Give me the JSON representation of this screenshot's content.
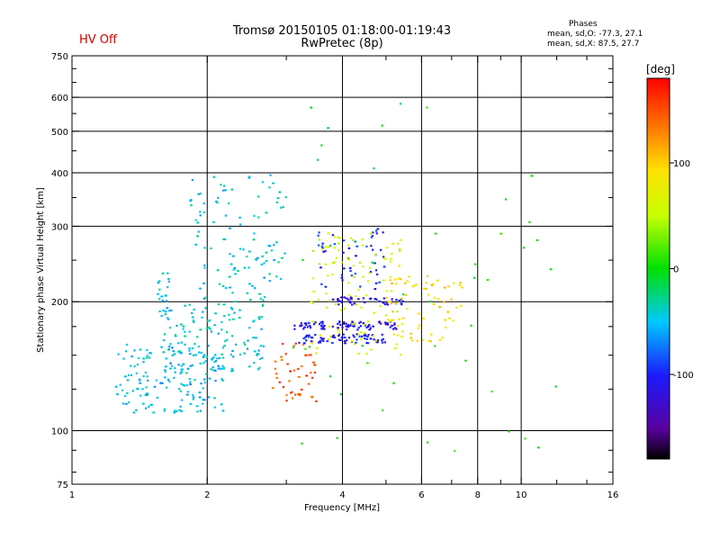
{
  "header": {
    "title_line1": "Tromsø 20150105 01:18:00-01:19:43",
    "title_line2": "RwPretec (8p)",
    "hv_status": "HV Off",
    "phases_title": "Phases",
    "phases_o": "mean, sd,O: -77.3, 27.1",
    "phases_x": "mean, sd,X:  87.5, 27.7"
  },
  "colorbar": {
    "unit": "[deg]",
    "min": -180,
    "max": 180,
    "ticks": [
      {
        "value": 100,
        "label": "100"
      },
      {
        "value": 0,
        "label": "0"
      },
      {
        "value": -100,
        "label": "-100"
      }
    ]
  },
  "chart_data": {
    "type": "scatter",
    "title": "Tromsø 20150105 01:18:00-01:19:43",
    "subtitle": "RwPretec (8p)",
    "xlabel": "Frequency [MHz]",
    "ylabel": "Stationary phase Virtual Height [km]",
    "x_scale": "log",
    "y_scale": "log",
    "xlim": [
      1,
      16
    ],
    "ylim": [
      75,
      750
    ],
    "x_ticks": [
      1,
      2,
      4,
      6,
      8,
      10,
      16
    ],
    "x_minor_ticks": [
      3,
      5,
      7,
      9,
      12,
      14
    ],
    "y_ticks": [
      75,
      100,
      200,
      300,
      400,
      500,
      600,
      750
    ],
    "y_minor_ticks": [
      80,
      90,
      125,
      150,
      175,
      250,
      350,
      450,
      550,
      650,
      700
    ],
    "grid_x": [
      2,
      4,
      6,
      8,
      10
    ],
    "grid_y": [
      100,
      200,
      300,
      400,
      500,
      600
    ],
    "color_scale": "phase [deg], -180 black/purple to 180 red",
    "clusters": [
      {
        "name": "O-mode low band",
        "x_range": [
          1.25,
          2.2
        ],
        "y_range": [
          110,
          160
        ],
        "phase": -50,
        "count": 160
      },
      {
        "name": "O-mode low trace",
        "x_range": [
          1.6,
          2.7
        ],
        "y_range": [
          135,
          200
        ],
        "phase": -45,
        "count": 130
      },
      {
        "name": "O-mode upper scatter",
        "x_range": [
          1.8,
          3.0
        ],
        "y_range": [
          200,
          400
        ],
        "phase": -45,
        "count": 110
      },
      {
        "name": "O-mode 1.6 MHz clump",
        "x_range": [
          1.55,
          1.65
        ],
        "y_range": [
          185,
          235
        ],
        "phase": -45,
        "count": 20
      },
      {
        "name": "X-mode trace 175 km",
        "x_range": [
          3.1,
          5.3
        ],
        "y_range": [
          172,
          180
        ],
        "phase": -110,
        "count": 80
      },
      {
        "name": "X-mode trace 163 km",
        "x_range": [
          3.2,
          5.0
        ],
        "y_range": [
          160,
          168
        ],
        "phase": -105,
        "count": 70
      },
      {
        "name": "X-mode trace 200 km",
        "x_range": [
          3.8,
          5.5
        ],
        "y_range": [
          196,
          205
        ],
        "phase": -115,
        "count": 40
      },
      {
        "name": "X-mode upper cluster",
        "x_range": [
          3.5,
          5.0
        ],
        "y_range": [
          210,
          300
        ],
        "phase": -100,
        "count": 50
      },
      {
        "name": "Green/yellow 3.5-5.5 MHz",
        "x_range": [
          3.4,
          5.5
        ],
        "y_range": [
          150,
          290
        ],
        "phase": 60,
        "count": 110
      },
      {
        "name": "Yellow high freq",
        "x_range": [
          5.0,
          7.5
        ],
        "y_range": [
          160,
          230
        ],
        "phase": 95,
        "count": 70
      },
      {
        "name": "Orange low trace",
        "x_range": [
          2.8,
          3.5
        ],
        "y_range": [
          115,
          160
        ],
        "phase": 150,
        "count": 45
      },
      {
        "name": "Sparse scatter",
        "x_range": [
          3.0,
          12.0
        ],
        "y_range": [
          85,
          600
        ],
        "phase": 0,
        "count": 45
      }
    ]
  }
}
